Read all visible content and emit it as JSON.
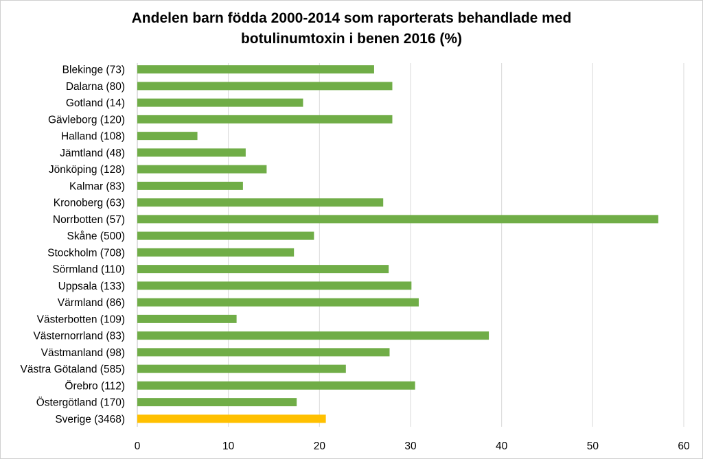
{
  "chart_data": {
    "type": "bar",
    "orientation": "horizontal",
    "title_lines": [
      "Andelen barn födda 2000-2014 som raporterats behandlade med",
      "botulinumtoxin i benen 2016 (%)"
    ],
    "categories": [
      "Blekinge (73)",
      "Dalarna (80)",
      "Gotland (14)",
      "Gävleborg (120)",
      "Halland (108)",
      "Jämtland (48)",
      "Jönköping (128)",
      "Kalmar (83)",
      "Kronoberg (63)",
      "Norrbotten (57)",
      "Skåne (500)",
      "Stockholm (708)",
      "Sörmland (110)",
      "Uppsala (133)",
      "Värmland (86)",
      "Västerbotten (109)",
      "Västernorrland (83)",
      "Västmanland (98)",
      "Västra Götaland (585)",
      "Örebro (112)",
      "Östergötland (170)",
      "Sverige (3468)"
    ],
    "values": [
      26,
      28,
      18.2,
      28,
      6.6,
      11.9,
      14.2,
      11.6,
      27,
      57.2,
      19.4,
      17.2,
      27.6,
      30.1,
      30.9,
      10.9,
      38.6,
      27.7,
      22.9,
      30.5,
      17.5,
      20.7
    ],
    "highlight_category": "Sverige (3468)",
    "xlim": [
      0,
      60
    ],
    "xticks": [
      0,
      10,
      20,
      30,
      40,
      50,
      60
    ],
    "grid": "vertical",
    "legend": "none",
    "colors": {
      "bar": "#70AD47",
      "highlight": "#FFC000",
      "grid": "#d9d9d9",
      "axis": "#bfbfbf"
    }
  }
}
